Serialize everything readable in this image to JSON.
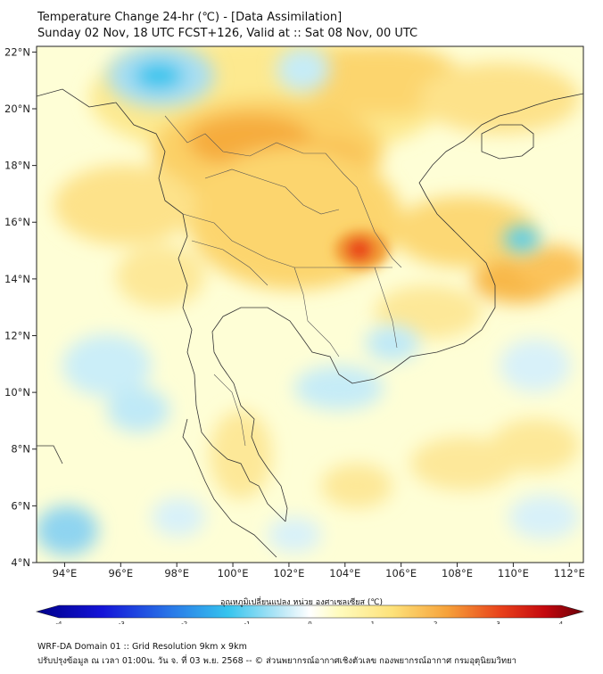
{
  "header": {
    "title": "Temperature Change 24-hr (℃) - [Data Assimilation]",
    "subtitle": "Sunday 02 Nov, 18 UTC FCST+126, Valid at :: Sat 08 Nov, 00 UTC"
  },
  "map": {
    "lon_ticks": [
      "94°E",
      "96°E",
      "98°E",
      "100°E",
      "102°E",
      "104°E",
      "106°E",
      "108°E",
      "110°E",
      "112°E"
    ],
    "lat_ticks": [
      "22°N",
      "20°N",
      "18°N",
      "16°N",
      "14°N",
      "12°N",
      "10°N",
      "8°N",
      "6°N",
      "4°N"
    ],
    "lon_range": [
      93,
      112.5
    ],
    "lat_range": [
      4,
      22.2
    ]
  },
  "colorbar": {
    "title": "อุณหภูมิเปลี่ยนแปลง หน่วย องศาเซลเซียส (℃)",
    "ticks": [
      "-4",
      "-3",
      "-2",
      "-1",
      "0",
      "1",
      "2",
      "3",
      "4"
    ],
    "min": -4,
    "max": 4
  },
  "footer": {
    "line1": "WRF-DA Domain 01 :: Grid Resolution 9km x 9km",
    "line2": "ปรับปรุงข้อมูล ณ เวลา 01:00น. วัน จ. ที่ 03 พ.ย. 2568 -- © ส่วนพยากรณ์อากาศเชิงตัวเลข กองพยากรณ์อากาศ กรมอุตุนิยมวิทยา"
  },
  "colors": {
    "background": "#fefed2",
    "border": "#222222",
    "warm_light": "#fde68a",
    "warm": "#f8b84a",
    "hot": "#ea4e1a",
    "cool": "#8fd4f0",
    "cold": "#30c4ee"
  }
}
